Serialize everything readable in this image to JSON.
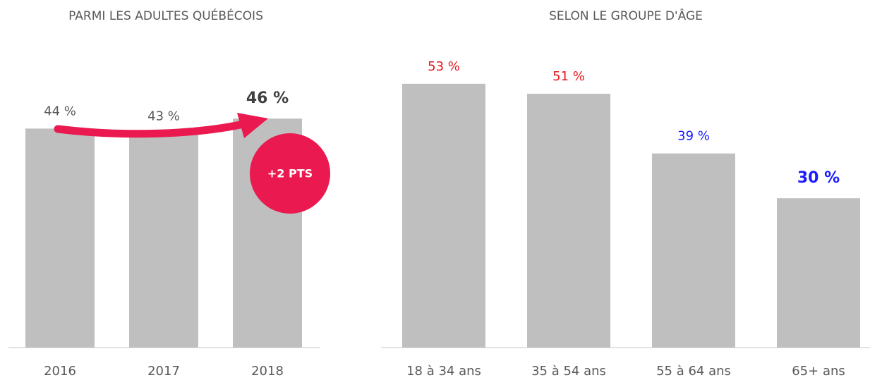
{
  "chart_data": [
    {
      "type": "bar",
      "title": "PARMI LES ADULTES QUÉBÉCOIS",
      "categories": [
        "2016",
        "2017",
        "2018"
      ],
      "values": [
        44,
        43,
        46
      ],
      "value_labels": [
        "44 %",
        "43 %",
        "46 %"
      ],
      "color": "#bfbfbf",
      "value_label_colors": [
        "#595959",
        "#595959",
        "#404040"
      ],
      "bold_index": 2,
      "annotation": "+2 PTS",
      "annotation_color": "#ea1a50"
    },
    {
      "type": "bar",
      "title": "SELON LE GROUPE D'ÂGE",
      "categories": [
        "18 à 34 ans",
        "35 à 54 ans",
        "55 à 64 ans",
        "65+ ans"
      ],
      "values": [
        53,
        51,
        39,
        30
      ],
      "value_labels": [
        "53 %",
        "51 %",
        "39 %",
        "30 %"
      ],
      "color": "#bfbfbf",
      "value_label_colors": [
        "#e8141c",
        "#e8141c",
        "#1a1aff",
        "#1a1aff"
      ],
      "bold_index": 3
    }
  ]
}
